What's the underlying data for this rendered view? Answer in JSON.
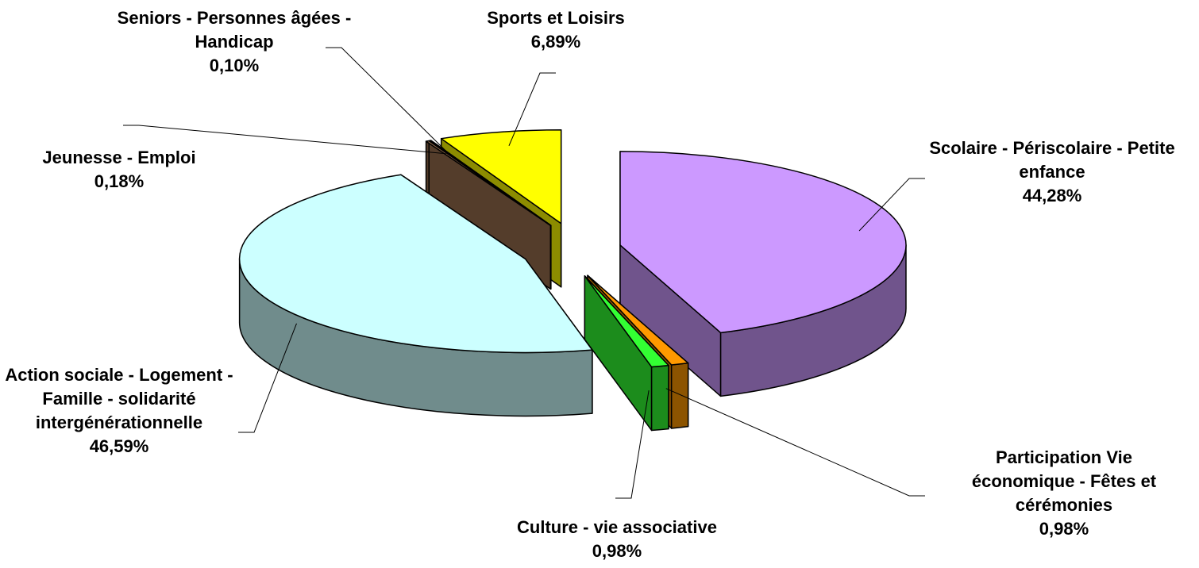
{
  "chart_data": {
    "type": "pie3d",
    "categories": [
      "Scolaire - Périscolaire - Petite enfance",
      "Participation Vie économique - Fêtes et cérémonies",
      "Culture - vie associative",
      "Action sociale - Logement - Famille - solidarité intergénérationnelle",
      "Jeunesse - Emploi",
      "Seniors - Personnes âgées - Handicap",
      "Sports et Loisirs"
    ],
    "values": [
      44.28,
      0.98,
      0.98,
      46.59,
      0.18,
      0.1,
      6.89
    ],
    "value_labels": [
      "44,28%",
      "0,98%",
      "0,98%",
      "46,59%",
      "0,18%",
      "0,10%",
      "6,89%"
    ],
    "colors": [
      "#cc99ff",
      "#ff9900",
      "#33ff33",
      "#ccffff",
      "#996f4f",
      "#1f3f99",
      "#ffff00"
    ]
  }
}
